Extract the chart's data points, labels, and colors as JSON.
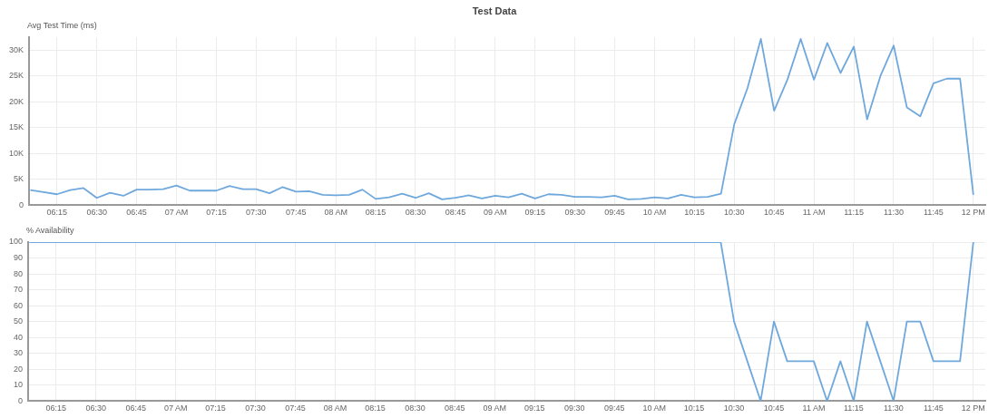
{
  "chart_data": [
    {
      "type": "line",
      "title": "Test Data",
      "ylabel": "Avg Test Time (ms)",
      "x": [
        6.0833,
        6.1667,
        6.25,
        6.3333,
        6.4167,
        6.5,
        6.5833,
        6.6667,
        6.75,
        6.8333,
        6.9167,
        7,
        7.0833,
        7.1667,
        7.25,
        7.3333,
        7.4167,
        7.5,
        7.5833,
        7.6667,
        7.75,
        7.8333,
        7.9167,
        8,
        8.0833,
        8.1667,
        8.25,
        8.3333,
        8.4167,
        8.5,
        8.5833,
        8.6667,
        8.75,
        8.8333,
        8.9167,
        9,
        9.0833,
        9.1667,
        9.25,
        9.3333,
        9.4167,
        9.5,
        9.5833,
        9.6667,
        9.75,
        9.8333,
        9.9167,
        10,
        10.0833,
        10.1667,
        10.25,
        10.3333,
        10.4167,
        10.5,
        10.5833,
        10.6667,
        10.75,
        10.8333,
        10.9167,
        11,
        11.0833,
        11.1667,
        11.25,
        11.3333,
        11.4167,
        11.5,
        11.5833,
        11.6667,
        11.75,
        11.8333,
        11.9167,
        12
      ],
      "values": [
        2900,
        2500,
        2100,
        2900,
        3300,
        1400,
        2400,
        1800,
        3000,
        3000,
        3100,
        3800,
        2800,
        2800,
        2800,
        3700,
        3100,
        3100,
        2300,
        3500,
        2600,
        2700,
        2000,
        1900,
        2000,
        3000,
        1200,
        1500,
        2200,
        1400,
        2300,
        1100,
        1400,
        1900,
        1300,
        1800,
        1500,
        2200,
        1300,
        2100,
        2000,
        1600,
        1600,
        1500,
        1800,
        1100,
        1200,
        1500,
        1300,
        2000,
        1500,
        1600,
        2200,
        15700,
        22700,
        32200,
        18300,
        24300,
        32200,
        24300,
        31400,
        25600,
        30700,
        16600,
        25000,
        30900,
        18900,
        17200,
        23600,
        24500,
        24500,
        2000
      ],
      "color": "#6fa8dc",
      "marker": "none",
      "line_style": "solid",
      "grid": true,
      "xlim": [
        6.075,
        12.075
      ],
      "ylim": [
        0,
        32500
      ],
      "xticks": [
        {
          "value": 6.25,
          "label": "06:15"
        },
        {
          "value": 6.5,
          "label": "06:30"
        },
        {
          "value": 6.75,
          "label": "06:45"
        },
        {
          "value": 7,
          "label": "07 AM"
        },
        {
          "value": 7.25,
          "label": "07:15"
        },
        {
          "value": 7.5,
          "label": "07:30"
        },
        {
          "value": 7.75,
          "label": "07:45"
        },
        {
          "value": 8,
          "label": "08 AM"
        },
        {
          "value": 8.25,
          "label": "08:15"
        },
        {
          "value": 8.5,
          "label": "08:30"
        },
        {
          "value": 8.75,
          "label": "08:45"
        },
        {
          "value": 9,
          "label": "09 AM"
        },
        {
          "value": 9.25,
          "label": "09:15"
        },
        {
          "value": 9.5,
          "label": "09:30"
        },
        {
          "value": 9.75,
          "label": "09:45"
        },
        {
          "value": 10,
          "label": "10 AM"
        },
        {
          "value": 10.25,
          "label": "10:15"
        },
        {
          "value": 10.5,
          "label": "10:30"
        },
        {
          "value": 10.75,
          "label": "10:45"
        },
        {
          "value": 11,
          "label": "11 AM"
        },
        {
          "value": 11.25,
          "label": "11:15"
        },
        {
          "value": 11.5,
          "label": "11:30"
        },
        {
          "value": 11.75,
          "label": "11:45"
        },
        {
          "value": 12,
          "label": "12 PM"
        }
      ],
      "yticks": [
        0,
        {
          "value": 5000,
          "label": "5K"
        },
        {
          "value": 10000,
          "label": "10K"
        },
        {
          "value": 15000,
          "label": "15K"
        },
        {
          "value": 20000,
          "label": "20K"
        },
        {
          "value": 25000,
          "label": "25K"
        },
        {
          "value": 30000,
          "label": "30K"
        }
      ]
    },
    {
      "type": "line",
      "ylabel": "% Availability",
      "x": [
        6.0833,
        6.1667,
        6.25,
        6.3333,
        6.4167,
        6.5,
        6.5833,
        6.6667,
        6.75,
        6.8333,
        6.9167,
        7,
        7.0833,
        7.1667,
        7.25,
        7.3333,
        7.4167,
        7.5,
        7.5833,
        7.6667,
        7.75,
        7.8333,
        7.9167,
        8,
        8.0833,
        8.1667,
        8.25,
        8.3333,
        8.4167,
        8.5,
        8.5833,
        8.6667,
        8.75,
        8.8333,
        8.9167,
        9,
        9.0833,
        9.1667,
        9.25,
        9.3333,
        9.4167,
        9.5,
        9.5833,
        9.6667,
        9.75,
        9.8333,
        9.9167,
        10,
        10.0833,
        10.1667,
        10.25,
        10.3333,
        10.4167,
        10.5,
        10.5833,
        10.6667,
        10.75,
        10.8333,
        10.9167,
        11,
        11.0833,
        11.1667,
        11.25,
        11.3333,
        11.4167,
        11.5,
        11.5833,
        11.6667,
        11.75,
        11.8333,
        11.9167,
        12
      ],
      "values": [
        100,
        100,
        100,
        100,
        100,
        100,
        100,
        100,
        100,
        100,
        100,
        100,
        100,
        100,
        100,
        100,
        100,
        100,
        100,
        100,
        100,
        100,
        100,
        100,
        100,
        100,
        100,
        100,
        100,
        100,
        100,
        100,
        100,
        100,
        100,
        100,
        100,
        100,
        100,
        100,
        100,
        100,
        100,
        100,
        100,
        100,
        100,
        100,
        100,
        100,
        100,
        100,
        100,
        50,
        25,
        0,
        50,
        25,
        25,
        25,
        0,
        25,
        0,
        50,
        25,
        0,
        50,
        50,
        25,
        25,
        25,
        100
      ],
      "color": "#6fa8dc",
      "marker": "none",
      "line_style": "solid",
      "grid": true,
      "xlim": [
        6.075,
        12.075
      ],
      "ylim": [
        0,
        100
      ],
      "xticks": [
        {
          "value": 6.25,
          "label": "06:15"
        },
        {
          "value": 6.5,
          "label": "06:30"
        },
        {
          "value": 6.75,
          "label": "06:45"
        },
        {
          "value": 7,
          "label": "07 AM"
        },
        {
          "value": 7.25,
          "label": "07:15"
        },
        {
          "value": 7.5,
          "label": "07:30"
        },
        {
          "value": 7.75,
          "label": "07:45"
        },
        {
          "value": 8,
          "label": "08 AM"
        },
        {
          "value": 8.25,
          "label": "08:15"
        },
        {
          "value": 8.5,
          "label": "08:30"
        },
        {
          "value": 8.75,
          "label": "08:45"
        },
        {
          "value": 9,
          "label": "09 AM"
        },
        {
          "value": 9.25,
          "label": "09:15"
        },
        {
          "value": 9.5,
          "label": "09:30"
        },
        {
          "value": 9.75,
          "label": "09:45"
        },
        {
          "value": 10,
          "label": "10 AM"
        },
        {
          "value": 10.25,
          "label": "10:15"
        },
        {
          "value": 10.5,
          "label": "10:30"
        },
        {
          "value": 10.75,
          "label": "10:45"
        },
        {
          "value": 11,
          "label": "11 AM"
        },
        {
          "value": 11.25,
          "label": "11:15"
        },
        {
          "value": 11.5,
          "label": "11:30"
        },
        {
          "value": 11.75,
          "label": "11:45"
        },
        {
          "value": 12,
          "label": "12 PM"
        }
      ],
      "yticks": [
        0,
        10,
        20,
        30,
        40,
        50,
        60,
        70,
        80,
        90,
        100
      ]
    }
  ]
}
